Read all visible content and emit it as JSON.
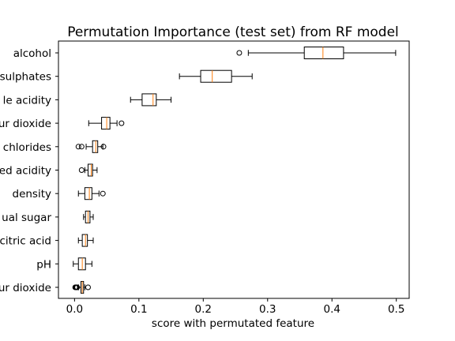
{
  "chart_data": {
    "type": "boxplot",
    "orientation": "horizontal",
    "title": "Permutation Importance (test set) from RF model",
    "xlabel": "score with permutated feature",
    "ylabel": "",
    "xlim": [
      -0.025,
      0.52
    ],
    "xticks": [
      0.0,
      0.1,
      0.2,
      0.3,
      0.4,
      0.5
    ],
    "xtick_labels": [
      "0.0",
      "0.1",
      "0.2",
      "0.3",
      "0.4",
      "0.5"
    ],
    "grid": false,
    "colors": {
      "box": "#000000",
      "median": "#ff7f0e",
      "background": "#ffffff"
    },
    "features": [
      {
        "label": "alcohol",
        "whisker_low": 0.27,
        "q1": 0.357,
        "median": 0.386,
        "q3": 0.418,
        "whisker_high": 0.499,
        "fliers": [
          0.256
        ]
      },
      {
        "label": "sulphates",
        "whisker_low": 0.163,
        "q1": 0.196,
        "median": 0.214,
        "q3": 0.244,
        "whisker_high": 0.276,
        "fliers": []
      },
      {
        "label": "le acidity",
        "whisker_low": 0.087,
        "q1": 0.105,
        "median": 0.122,
        "q3": 0.127,
        "whisker_high": 0.15,
        "fliers": []
      },
      {
        "label": "ur dioxide",
        "whisker_low": 0.022,
        "q1": 0.042,
        "median": 0.05,
        "q3": 0.055,
        "whisker_high": 0.066,
        "fliers": [
          0.073
        ]
      },
      {
        "label": "chlorides",
        "whisker_low": 0.018,
        "q1": 0.028,
        "median": 0.033,
        "q3": 0.036,
        "whisker_high": 0.044,
        "fliers": [
          0.006,
          0.011,
          0.045
        ]
      },
      {
        "label": "ed acidity",
        "whisker_low": 0.016,
        "q1": 0.021,
        "median": 0.026,
        "q3": 0.028,
        "whisker_high": 0.035,
        "fliers": [
          0.011
        ]
      },
      {
        "label": "density",
        "whisker_low": 0.006,
        "q1": 0.016,
        "median": 0.023,
        "q3": 0.027,
        "whisker_high": 0.038,
        "fliers": [
          0.044
        ]
      },
      {
        "label": "ual sugar",
        "whisker_low": 0.014,
        "q1": 0.017,
        "median": 0.021,
        "q3": 0.024,
        "whisker_high": 0.029,
        "fliers": []
      },
      {
        "label": "citric acid",
        "whisker_low": 0.006,
        "q1": 0.012,
        "median": 0.017,
        "q3": 0.02,
        "whisker_high": 0.029,
        "fliers": []
      },
      {
        "label": "pH",
        "whisker_low": -0.002,
        "q1": 0.006,
        "median": 0.012,
        "q3": 0.017,
        "whisker_high": 0.027,
        "fliers": []
      },
      {
        "label": "ur dioxide",
        "whisker_low": 0.006,
        "q1": 0.01,
        "median": 0.012,
        "q3": 0.014,
        "whisker_high": 0.016,
        "fliers": [
          0.001,
          0.002,
          0.003,
          0.004,
          0.021
        ]
      }
    ]
  }
}
